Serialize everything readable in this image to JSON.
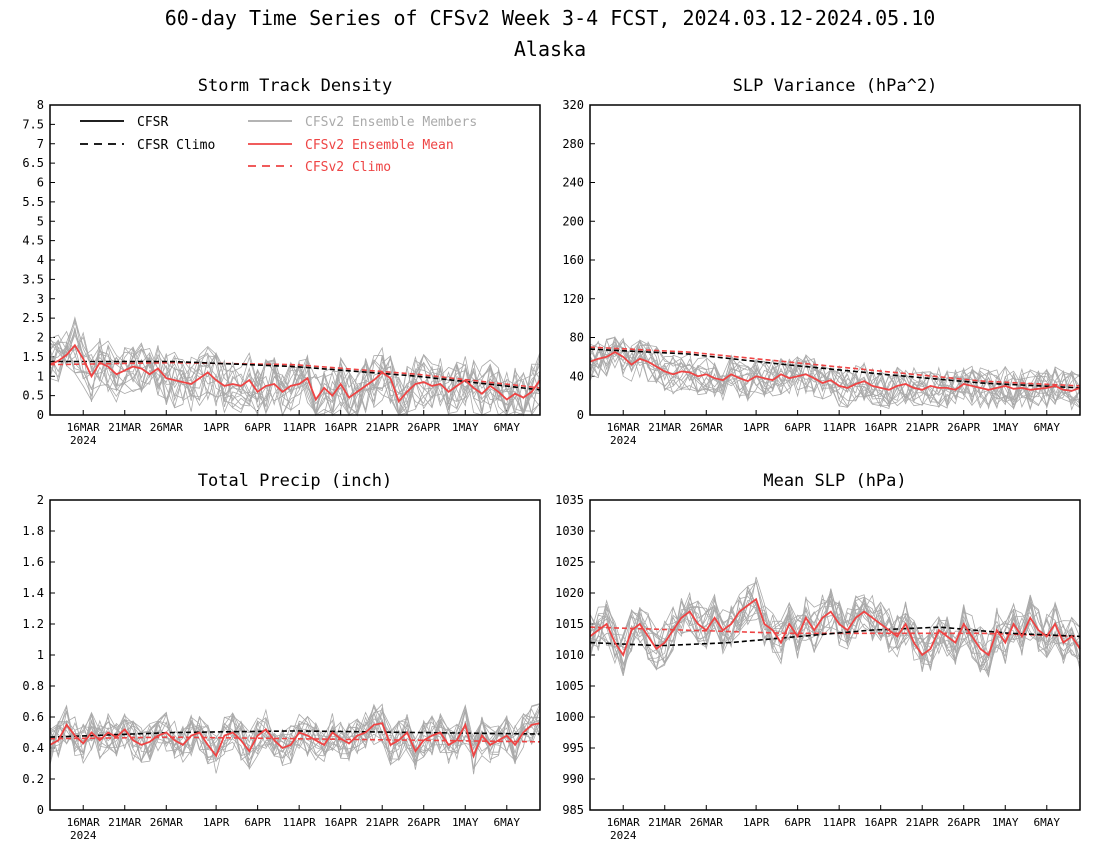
{
  "figure": {
    "title": "60-day Time Series of CFSv2 Week 3-4 FCST, 2024.03.12-2024.05.10",
    "subtitle": "Alaska"
  },
  "legend": {
    "items": [
      {
        "label": "CFSR",
        "color": "#000000",
        "dash": "solid"
      },
      {
        "label": "CFSR Climo",
        "color": "#000000",
        "dash": "dashed"
      },
      {
        "label": "CFSv2 Ensemble Members",
        "color": "#aaaaaa",
        "dash": "solid"
      },
      {
        "label": "CFSv2 Ensemble Mean",
        "color": "#ee4444",
        "dash": "solid"
      },
      {
        "label": "CFSv2 Climo",
        "color": "#ee4444",
        "dash": "dashed"
      }
    ]
  },
  "colors": {
    "ensemble_members": "#aaaaaa",
    "ensemble_mean": "#ee4444",
    "climo_cfsv2": "#ee4444",
    "cfsr": "#000000"
  },
  "x_axis": {
    "tick_labels": [
      "16MAR",
      "21MAR",
      "26MAR",
      "1APR",
      "6APR",
      "11APR",
      "16APR",
      "21APR",
      "26APR",
      "1MAY",
      "6MAY"
    ],
    "tick_day_index": [
      4,
      9,
      14,
      20,
      25,
      30,
      35,
      40,
      45,
      50,
      55
    ],
    "year_label": "2024",
    "days": 60
  },
  "chart_data": [
    {
      "type": "line",
      "title": "Storm Track Density",
      "ylim": [
        0,
        8
      ],
      "yticks": [
        "0",
        "0.5",
        "1",
        "1.5",
        "2",
        "2.5",
        "3",
        "3.5",
        "4",
        "4.5",
        "5",
        "5.5",
        "6",
        "6.5",
        "7",
        "7.5",
        "8"
      ],
      "legend_placement": "top-left",
      "series": [
        {
          "name": "CFSv2 Ensemble Mean",
          "values": [
            1.3,
            1.4,
            1.55,
            1.8,
            1.45,
            1.0,
            1.35,
            1.25,
            1.05,
            1.15,
            1.25,
            1.2,
            1.05,
            1.2,
            0.95,
            0.9,
            0.85,
            0.8,
            0.95,
            1.1,
            0.9,
            0.75,
            0.8,
            0.75,
            0.9,
            0.6,
            0.75,
            0.8,
            0.6,
            0.75,
            0.8,
            0.95,
            0.4,
            0.7,
            0.5,
            0.8,
            0.45,
            0.6,
            0.75,
            0.9,
            1.1,
            0.95,
            0.35,
            0.6,
            0.8,
            0.85,
            0.75,
            0.8,
            0.6,
            0.75,
            0.9,
            0.7,
            0.55,
            0.75,
            0.6,
            0.4,
            0.55,
            0.45,
            0.6,
            0.9
          ]
        },
        {
          "name": "CFSv2 Climo",
          "values": [
            1.3,
            1.35,
            1.3,
            1.05,
            0.7
          ]
        },
        {
          "name": "CFSR Climo",
          "values": [
            1.38,
            1.38,
            1.25,
            1.0,
            0.65
          ]
        }
      ]
    },
    {
      "type": "line",
      "title": "SLP Variance (hPa^2)",
      "ylim": [
        0,
        320
      ],
      "yticks": [
        "0",
        "40",
        "80",
        "120",
        "160",
        "200",
        "240",
        "280",
        "320"
      ],
      "series": [
        {
          "name": "CFSv2 Ensemble Mean",
          "values": [
            55,
            58,
            60,
            65,
            60,
            52,
            58,
            55,
            50,
            45,
            42,
            45,
            44,
            40,
            42,
            38,
            36,
            42,
            38,
            35,
            40,
            38,
            36,
            42,
            38,
            40,
            42,
            38,
            33,
            36,
            30,
            28,
            32,
            35,
            30,
            28,
            26,
            30,
            32,
            28,
            26,
            30,
            28,
            28,
            26,
            32,
            30,
            28,
            26,
            28,
            30,
            27,
            28,
            26,
            27,
            28,
            30,
            26,
            25,
            28
          ]
        },
        {
          "name": "CFSv2 Climo",
          "values": [
            70,
            65,
            55,
            45,
            35,
            30
          ]
        },
        {
          "name": "CFSR Climo",
          "values": [
            68,
            63,
            52,
            42,
            33,
            28
          ]
        }
      ]
    },
    {
      "type": "line",
      "title": "Total Precip (inch)",
      "ylim": [
        0,
        2
      ],
      "yticks": [
        "0",
        "0.2",
        "0.4",
        "0.6",
        "0.8",
        "1",
        "1.2",
        "1.4",
        "1.6",
        "1.8",
        "2"
      ],
      "series": [
        {
          "name": "CFSv2 Ensemble Mean",
          "values": [
            0.42,
            0.45,
            0.55,
            0.48,
            0.43,
            0.5,
            0.45,
            0.5,
            0.47,
            0.52,
            0.45,
            0.42,
            0.44,
            0.48,
            0.5,
            0.45,
            0.42,
            0.48,
            0.5,
            0.42,
            0.35,
            0.48,
            0.5,
            0.45,
            0.38,
            0.48,
            0.52,
            0.45,
            0.4,
            0.42,
            0.5,
            0.48,
            0.45,
            0.42,
            0.5,
            0.46,
            0.43,
            0.48,
            0.5,
            0.55,
            0.56,
            0.42,
            0.45,
            0.5,
            0.38,
            0.45,
            0.48,
            0.5,
            0.42,
            0.45,
            0.55,
            0.35,
            0.48,
            0.42,
            0.45,
            0.48,
            0.42,
            0.5,
            0.55,
            0.56
          ]
        },
        {
          "name": "CFSv2 Climo",
          "values": [
            0.46,
            0.47,
            0.46,
            0.45,
            0.44
          ]
        },
        {
          "name": "CFSR Climo",
          "values": [
            0.47,
            0.5,
            0.51,
            0.5,
            0.49
          ]
        }
      ]
    },
    {
      "type": "line",
      "title": "Mean SLP (hPa)",
      "ylim": [
        985,
        1035
      ],
      "yticks": [
        "985",
        "990",
        "995",
        "1000",
        "1005",
        "1010",
        "1015",
        "1020",
        "1025",
        "1030",
        "1035"
      ],
      "series": [
        {
          "name": "CFSv2 Ensemble Mean",
          "values": [
            1013,
            1014,
            1015,
            1012,
            1010,
            1014,
            1015,
            1013,
            1011,
            1012,
            1014,
            1016,
            1017,
            1015,
            1014,
            1016,
            1014,
            1015,
            1017,
            1018,
            1019,
            1015,
            1014,
            1012,
            1015,
            1013,
            1016,
            1014,
            1016,
            1017,
            1015,
            1014,
            1016,
            1017,
            1016,
            1015,
            1014,
            1013,
            1015,
            1012,
            1010,
            1011,
            1014,
            1013,
            1012,
            1015,
            1013,
            1011,
            1010,
            1014,
            1012,
            1015,
            1013,
            1016,
            1014,
            1013,
            1015,
            1012,
            1013,
            1011
          ]
        },
        {
          "name": "CFSv2 Climo",
          "values": [
            1014.5,
            1014.0,
            1013.5,
            1013.5,
            1013.5,
            1013.0
          ]
        },
        {
          "name": "CFSR Climo",
          "values": [
            1012.0,
            1011.5,
            1012.0,
            1013.0,
            1014.0,
            1014.5,
            1013.5,
            1013.0
          ]
        }
      ]
    }
  ]
}
